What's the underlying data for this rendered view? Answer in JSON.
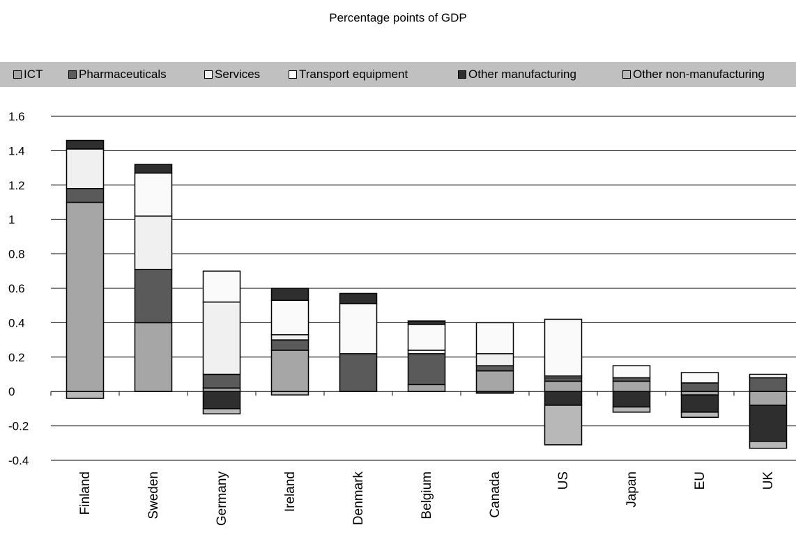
{
  "chart_data": {
    "type": "bar",
    "stacked": true,
    "title": "Percentage points of GDP",
    "xlabel": "",
    "ylabel": "",
    "ylim": [
      -0.4,
      1.6
    ],
    "yticks": [
      1.6,
      1.4,
      1.2,
      1,
      0.8,
      0.6,
      0.4,
      0.2,
      0,
      -0.2,
      -0.4
    ],
    "ytick_labels": [
      "1.6",
      "1.4",
      "1.2",
      "1",
      "0.8",
      "0.6",
      "0.4",
      "0.2",
      "0",
      "-0.2",
      "-0.4"
    ],
    "grid": true,
    "legend_position": "top",
    "categories": [
      "Finland",
      "Sweden",
      "Germany",
      "Ireland",
      "Denmark",
      "Belgium",
      "Canada",
      "US",
      "Japan",
      "EU",
      "UK"
    ],
    "series": [
      {
        "name": "ICT",
        "color": "#a6a6a6",
        "values": [
          1.1,
          0.4,
          0.02,
          0.24,
          0.0,
          0.04,
          0.12,
          0.06,
          0.06,
          -0.02,
          -0.08
        ]
      },
      {
        "name": "Pharmaceuticals",
        "color": "#5a5a5a",
        "values": [
          0.08,
          0.31,
          0.08,
          0.06,
          0.22,
          0.18,
          0.03,
          0.02,
          0.02,
          0.05,
          0.08
        ]
      },
      {
        "name": "Services",
        "color": "#f0f0f0",
        "values": [
          0.23,
          0.31,
          0.42,
          0.03,
          0.0,
          0.02,
          0.07,
          0.01,
          0.0,
          0.0,
          0.0
        ]
      },
      {
        "name": "Transport equipment",
        "color": "#fafafa",
        "values": [
          0.0,
          0.25,
          0.18,
          0.2,
          0.29,
          0.15,
          0.18,
          0.33,
          0.07,
          0.06,
          0.02
        ]
      },
      {
        "name": "Other manufacturing",
        "color": "#2e2e2e",
        "values": [
          0.05,
          0.05,
          -0.1,
          0.07,
          0.06,
          0.02,
          -0.01,
          -0.08,
          -0.09,
          -0.1,
          -0.21
        ]
      },
      {
        "name": "Other non-manufacturing",
        "color": "#b8b8b8",
        "values": [
          -0.04,
          0.0,
          -0.03,
          -0.02,
          0.0,
          0.0,
          0.0,
          -0.23,
          -0.03,
          -0.03,
          -0.04
        ]
      }
    ]
  }
}
